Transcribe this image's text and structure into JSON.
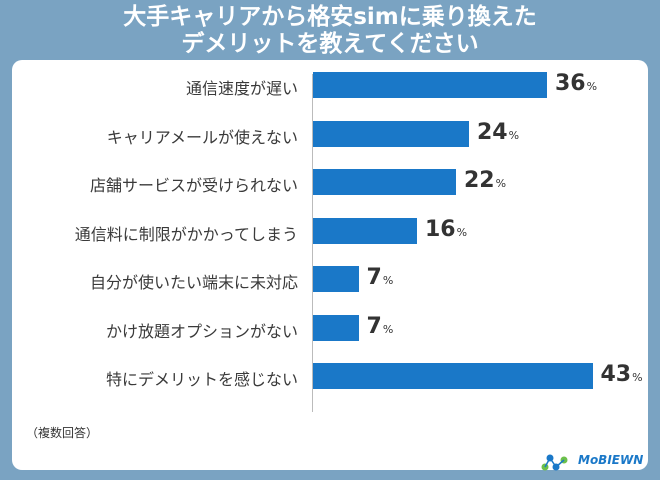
{
  "chart_data": {
    "type": "bar",
    "orientation": "horizontal",
    "title": "大手キャリアから格安simに乗り換えた\nデメリットを教えてください",
    "title_lines": [
      "大手キャリアから格安simに乗り換えた",
      "デメリットを教えてください"
    ],
    "categories": [
      "通信速度が遅い",
      "キャリアメールが使えない",
      "店舗サービスが受けられない",
      "通信料に制限がかかってしまう",
      "自分が使いたい端末に未対応",
      "かけ放題オプションがない",
      "特にデメリットを感じない"
    ],
    "values": [
      36,
      24,
      22,
      16,
      7,
      7,
      43
    ],
    "unit": "%",
    "xlim": [
      0,
      50
    ],
    "grid": false,
    "bar_color": "#1a78c8",
    "note": "（複数回答）"
  },
  "colors": {
    "background": "#7aa3c2",
    "panel": "#ffffff",
    "bar": "#1a78c8"
  },
  "logo": {
    "text": "MoBIEWN",
    "icon": "molecule-logo-icon"
  }
}
